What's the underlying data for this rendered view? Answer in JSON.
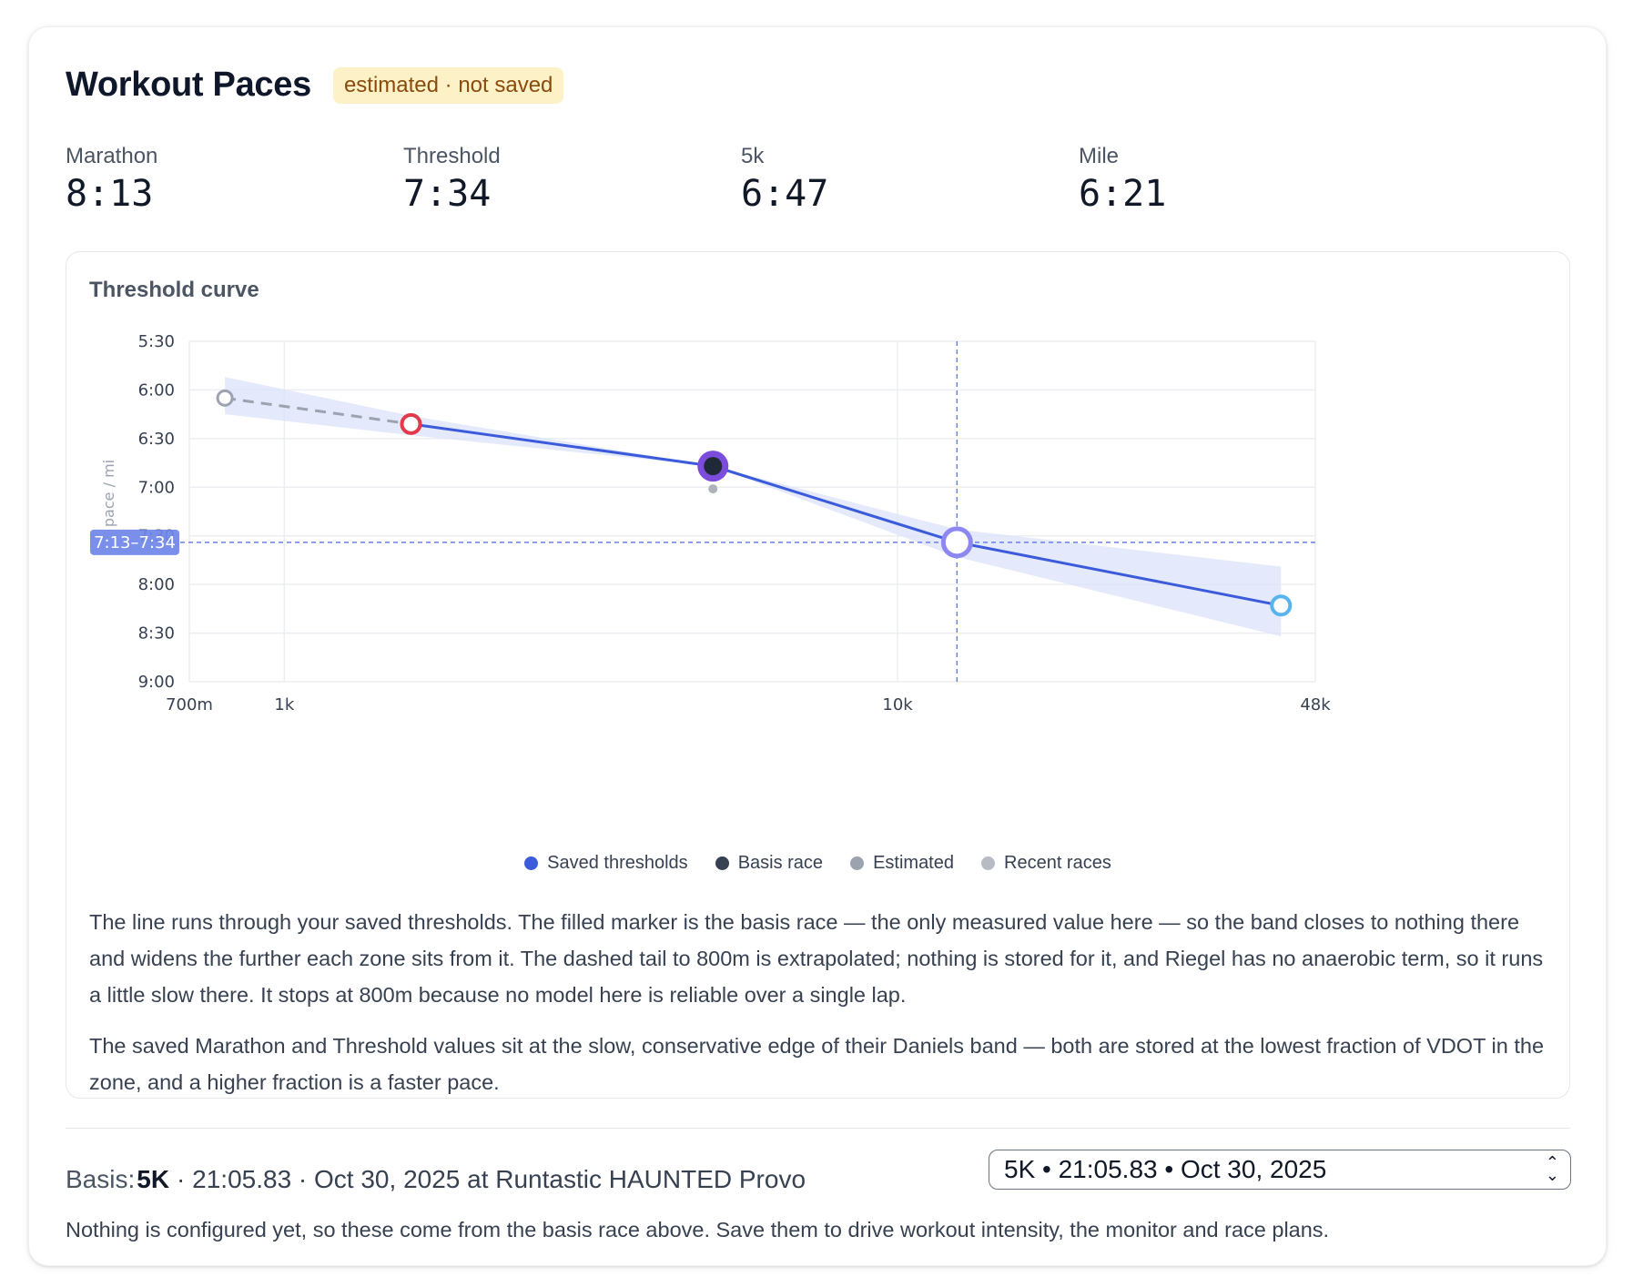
{
  "header": {
    "title": "Workout Paces",
    "badge": "estimated · not saved"
  },
  "stats": [
    {
      "label": "Marathon",
      "value": "8:13"
    },
    {
      "label": "Threshold",
      "value": "7:34"
    },
    {
      "label": "5k",
      "value": "6:47"
    },
    {
      "label": "Mile",
      "value": "6:21"
    }
  ],
  "chart_card": {
    "title": "Threshold curve",
    "paragraph_1": "The line runs through your saved thresholds. The filled marker is the basis race — the only measured value here — so the band closes to nothing there and widens the further each zone sits from it. The dashed tail to 800m is extrapolated; nothing is stored for it, and Riegel has no anaerobic term, so it runs a little slow there. It stops at 800m because no model here is reliable over a single lap.",
    "paragraph_2": "The saved Marathon and Threshold values sit at the slow, conservative edge of their Daniels band — both are stored at the lowest fraction of VDOT in the zone, and a higher fraction is a faster pace."
  },
  "chart_data": {
    "type": "line",
    "title": "Threshold curve",
    "xlabel": "",
    "ylabel": "pace / mi",
    "x_scale": "log",
    "xlim_m": [
      700,
      48000
    ],
    "x_ticks": [
      {
        "value": 700,
        "label": "700m"
      },
      {
        "value": 1000,
        "label": "1k"
      },
      {
        "value": 10000,
        "label": "10k"
      },
      {
        "value": 48000,
        "label": "48k"
      }
    ],
    "ylim_sec": [
      330,
      540
    ],
    "y_reversed": true,
    "y_ticks": [
      {
        "value": 330,
        "label": "5:30"
      },
      {
        "value": 360,
        "label": "6:00"
      },
      {
        "value": 390,
        "label": "6:30"
      },
      {
        "value": 420,
        "label": "7:00"
      },
      {
        "value": 450,
        "label": "7:30"
      },
      {
        "value": 480,
        "label": "8:00"
      },
      {
        "value": 510,
        "label": "8:30"
      },
      {
        "value": 540,
        "label": "9:00"
      }
    ],
    "grid": true,
    "series": [
      {
        "name": "Saved thresholds",
        "color": "#3b5bdb",
        "points": [
          {
            "x_m": 1609,
            "y_sec": 381,
            "marker": "ring",
            "color": "#e03a4b"
          },
          {
            "x_m": 5000,
            "y_sec": 407,
            "marker": "filled",
            "color": "#1f2937"
          },
          {
            "x_m": 12500,
            "y_sec": 454,
            "marker": "ring",
            "color": "#8d87f0"
          },
          {
            "x_m": 42195,
            "y_sec": 493,
            "marker": "ring",
            "color": "#58b4ee"
          }
        ]
      },
      {
        "name": "Estimated",
        "color": "#9ca3af",
        "dashed": true,
        "points": [
          {
            "x_m": 800,
            "y_sec": 365,
            "marker": "ring",
            "color": "#9ca3af"
          },
          {
            "x_m": 1609,
            "y_sec": 381
          }
        ]
      },
      {
        "name": "Recent races",
        "color": "#9ca3af",
        "points": [
          {
            "x_m": 5000,
            "y_sec": 421
          }
        ]
      }
    ],
    "uncertainty_band": [
      {
        "x_m": 800,
        "lo_sec": 352,
        "hi_sec": 375
      },
      {
        "x_m": 1609,
        "lo_sec": 376,
        "hi_sec": 388
      },
      {
        "x_m": 5000,
        "lo_sec": 407,
        "hi_sec": 407
      },
      {
        "x_m": 12500,
        "lo_sec": 446,
        "hi_sec": 463
      },
      {
        "x_m": 42195,
        "lo_sec": 469,
        "hi_sec": 512
      }
    ],
    "crosshair": {
      "x_m": 12500,
      "y_sec": 454,
      "readout": "7:13–7:34"
    },
    "legend": [
      {
        "label": "Saved thresholds",
        "color": "#3b5bdb"
      },
      {
        "label": "Basis race",
        "color": "#374151"
      },
      {
        "label": "Estimated",
        "color": "#9ca3af"
      },
      {
        "label": "Recent races",
        "color": "#b7bcc4"
      }
    ]
  },
  "basis": {
    "label": "Basis:",
    "distance": "5K",
    "detail": "· 21:05.83 · Oct 30, 2025 at Runtastic HAUNTED Provo",
    "select_value": "5K • 21:05.83 • Oct 30, 2025",
    "note": "Nothing is configured yet, so these come from the basis race above. Save them to drive workout intensity, the monitor and race plans."
  }
}
